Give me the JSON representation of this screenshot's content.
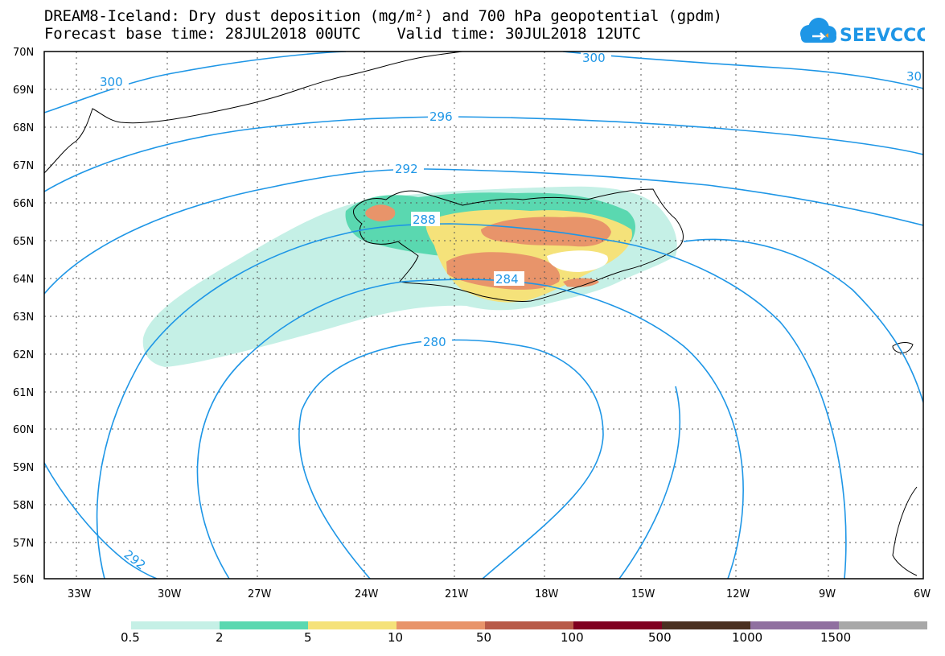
{
  "title_line1": "DREAM8-Iceland: Dry dust deposition (mg/m²) and 700 hPa geopotential (gpdm)",
  "title_line2": "Forecast base time: 28JUL2018 00UTC    Valid time: 30JUL2018 12UTC",
  "logo_text": "SEEVCCC",
  "lat_labels": [
    "70N",
    "69N",
    "68N",
    "67N",
    "66N",
    "65N",
    "64N",
    "63N",
    "62N",
    "61N",
    "60N",
    "59N",
    "58N",
    "57N",
    "56N"
  ],
  "lon_labels": [
    "33W",
    "30W",
    "27W",
    "24W",
    "21W",
    "18W",
    "15W",
    "12W",
    "9W",
    "6W"
  ],
  "contour_labels": [
    "300",
    "300",
    "30",
    "296",
    "292",
    "288",
    "284",
    "280",
    "292"
  ],
  "legend": {
    "colors": [
      "#c5f0e6",
      "#5ad8b0",
      "#f5e27a",
      "#e8946a",
      "#b85a48",
      "#800020",
      "#4a3020",
      "#9070a0",
      "#a8a8a8"
    ],
    "labels": [
      "0.5",
      "2",
      "5",
      "10",
      "50",
      "100",
      "500",
      "1000",
      "1500"
    ]
  },
  "colors": {
    "contour": "#1e96e6",
    "coast": "#000000",
    "logo": "#1e96e6"
  }
}
